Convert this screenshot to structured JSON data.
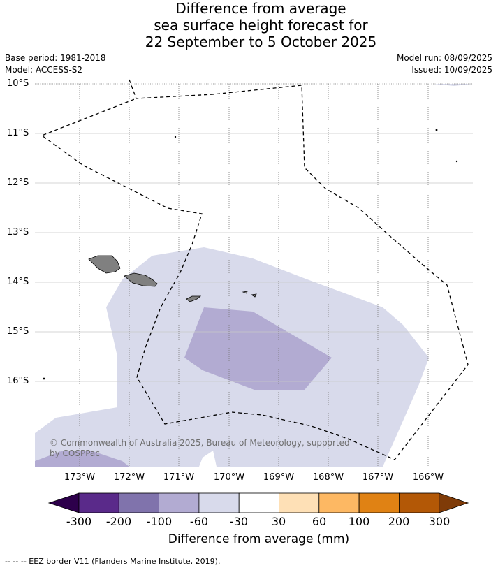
{
  "title_lines": [
    "Difference from average",
    "sea surface height forecast for",
    "22 September to 5 October 2025"
  ],
  "meta_left": [
    "Base period: 1981-2018",
    "Model: ACCESS-S2"
  ],
  "meta_right": [
    "Model run: 08/09/2025",
    "Issued: 10/09/2025"
  ],
  "map": {
    "lat_ticks": [
      "10°S",
      "11°S",
      "12°S",
      "13°S",
      "14°S",
      "15°S",
      "16°S"
    ],
    "lon_ticks": [
      "173°W",
      "172°W",
      "171°W",
      "170°W",
      "169°W",
      "168°W",
      "167°W",
      "166°W"
    ],
    "copyright": "© Commonwealth of Australia 2025, Bureau of Meteorology, supported by COSPPac",
    "land_color": "#808080",
    "eez_line": "dashed-black"
  },
  "colorbar": {
    "tick_labels": [
      "-300",
      "-200",
      "-100",
      "-60",
      "-30",
      "30",
      "60",
      "100",
      "200",
      "300"
    ],
    "colors": [
      "#2d004b",
      "#5a2a8a",
      "#8073ac",
      "#b2abd2",
      "#d8daeb",
      "#ffffff",
      "#fee0b6",
      "#fdb863",
      "#e08214",
      "#b35806",
      "#7f3b08"
    ],
    "title": "Difference from average (mm)"
  },
  "footer": "--  --  -- EEZ border V11 (Flanders Marine Institute, 2019)."
}
